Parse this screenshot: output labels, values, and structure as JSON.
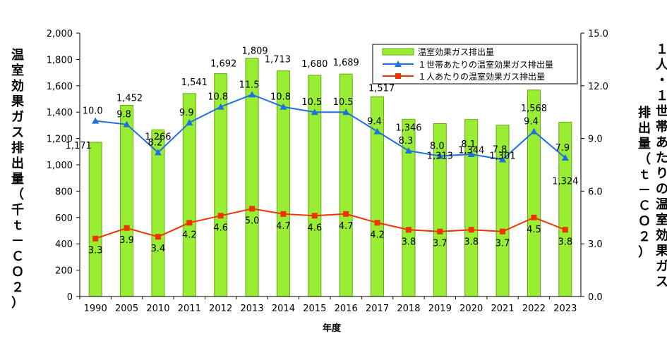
{
  "chart_data": {
    "type": "bar",
    "xlabel": "年度",
    "ylabel_left": "温室効果ガス排出量（千ｔ－ＣＯ２）",
    "ylabel_right": [
      "１人・１世帯あたりの温室効果ガス",
      "排出量（ｔ－ＣＯ２）"
    ],
    "categories": [
      "1990",
      "2005",
      "2010",
      "2011",
      "2012",
      "2013",
      "2014",
      "2015",
      "2016",
      "2017",
      "2018",
      "2019",
      "2020",
      "2021",
      "2022",
      "2023"
    ],
    "ylim_left": [
      0,
      2000
    ],
    "yticks_left": [
      "0",
      "200",
      "400",
      "600",
      "800",
      "1,000",
      "1,200",
      "1,400",
      "1,600",
      "1,800",
      "2,000"
    ],
    "ylim_right": [
      0,
      15
    ],
    "yticks_right": [
      "0.0",
      "3.0",
      "6.0",
      "9.0",
      "12.0",
      "15.0"
    ],
    "legend_position": "top-right",
    "grid": false,
    "series": [
      {
        "name": "温室効果ガス排出量",
        "kind": "bar",
        "axis": "left",
        "color": "#99ee33",
        "values": [
          1171,
          1452,
          1266,
          1541,
          1692,
          1809,
          1713,
          1680,
          1689,
          1517,
          1346,
          1313,
          1344,
          1301,
          1568,
          1324
        ],
        "labels": [
          "1,171",
          "1,452",
          "1,266",
          "1,541",
          "1,692",
          "1,809",
          "1,713",
          "1,680",
          "1,689",
          "1,517",
          "1,346",
          "1,313",
          "1,344",
          "1,301",
          "1,568",
          "1,324"
        ]
      },
      {
        "name": "１世帯あたりの温室効果ガス排出量",
        "kind": "line",
        "axis": "right",
        "color": "#1e6fe0",
        "marker": "triangle",
        "values": [
          10.0,
          9.8,
          8.2,
          9.9,
          10.8,
          11.5,
          10.8,
          10.5,
          10.5,
          9.4,
          8.3,
          8.0,
          8.1,
          7.8,
          9.4,
          7.9
        ],
        "labels": [
          "10.0",
          "9.8",
          "8.2",
          "9.9",
          "10.8",
          "11.5",
          "10.8",
          "10.5",
          "10.5",
          "9.4",
          "8.3",
          "8.0",
          "8.1",
          "7.8",
          "9.4",
          "7.9"
        ]
      },
      {
        "name": "１人あたりの温室効果ガス排出量",
        "kind": "line",
        "axis": "right",
        "color": "#ee3300",
        "marker": "square",
        "values": [
          3.3,
          3.9,
          3.4,
          4.2,
          4.6,
          5.0,
          4.7,
          4.6,
          4.7,
          4.2,
          3.8,
          3.7,
          3.8,
          3.7,
          4.5,
          3.8
        ],
        "labels": [
          "3.3",
          "3.9",
          "3.4",
          "4.2",
          "4.6",
          "5.0",
          "4.7",
          "4.6",
          "4.7",
          "4.2",
          "3.8",
          "3.7",
          "3.8",
          "3.7",
          "4.5",
          "3.8"
        ]
      }
    ]
  }
}
